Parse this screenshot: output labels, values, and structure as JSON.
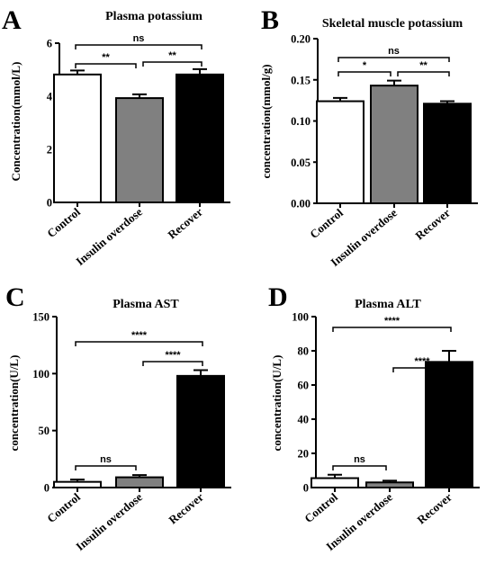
{
  "chart_data": [
    {
      "panel": "A",
      "type": "bar",
      "title": "Plasma potassium",
      "ylabel": "Concentration(mmol/L)",
      "categories": [
        "Control",
        "Insulin overdose",
        "Recover"
      ],
      "values": [
        4.82,
        3.93,
        4.82
      ],
      "errors": [
        0.15,
        0.14,
        0.2
      ],
      "fills": [
        "#ffffff",
        "#808080",
        "#000000"
      ],
      "ylim": [
        0,
        6
      ],
      "yticks": [
        0,
        2,
        4,
        6
      ],
      "yticklabels": [
        "0",
        "2",
        "4",
        "6"
      ],
      "comparisons": [
        {
          "from": 0,
          "to": 1,
          "label": "**"
        },
        {
          "from": 1,
          "to": 2,
          "label": "**"
        },
        {
          "from": 0,
          "to": 2,
          "label": "ns"
        }
      ]
    },
    {
      "panel": "B",
      "type": "bar",
      "title": "Skeletal muscle potassium",
      "ylabel": "concentration(mmol/g)",
      "categories": [
        "Control",
        "Insulin overdose",
        "Recover"
      ],
      "values": [
        0.124,
        0.143,
        0.121
      ],
      "errors": [
        0.004,
        0.006,
        0.003
      ],
      "fills": [
        "#ffffff",
        "#808080",
        "#000000"
      ],
      "ylim": [
        0,
        0.2
      ],
      "yticks": [
        0,
        0.05,
        0.1,
        0.15,
        0.2
      ],
      "yticklabels": [
        "0.00",
        "0.05",
        "0.10",
        "0.15",
        "0.20"
      ],
      "comparisons": [
        {
          "from": 0,
          "to": 1,
          "label": "*"
        },
        {
          "from": 1,
          "to": 2,
          "label": "**"
        },
        {
          "from": 0,
          "to": 2,
          "label": "ns"
        }
      ]
    },
    {
      "panel": "C",
      "type": "bar",
      "title": "Plasma AST",
      "ylabel": "concentration(U/L)",
      "categories": [
        "Control",
        "Insulin overdose",
        "Recover"
      ],
      "values": [
        5,
        9,
        98
      ],
      "errors": [
        2,
        2,
        5
      ],
      "fills": [
        "#ffffff",
        "#808080",
        "#000000"
      ],
      "ylim": [
        0,
        150
      ],
      "yticks": [
        0,
        50,
        100,
        150
      ],
      "yticklabels": [
        "0",
        "50",
        "100",
        "150"
      ],
      "comparisons": [
        {
          "from": 0,
          "to": 1,
          "label": "ns"
        },
        {
          "from": 1,
          "to": 2,
          "label": "****"
        },
        {
          "from": 0,
          "to": 2,
          "label": "****"
        }
      ]
    },
    {
      "panel": "D",
      "type": "bar",
      "title": "Plasma ALT",
      "ylabel": "concentration(U/L)",
      "categories": [
        "Control",
        "Insulin overdose",
        "Recover"
      ],
      "values": [
        5.5,
        3,
        73.5
      ],
      "errors": [
        2,
        1,
        6.5
      ],
      "fills": [
        "#ffffff",
        "#808080",
        "#000000"
      ],
      "ylim": [
        0,
        100
      ],
      "yticks": [
        0,
        20,
        40,
        60,
        80,
        100
      ],
      "yticklabels": [
        "0",
        "20",
        "40",
        "60",
        "80",
        "100"
      ],
      "comparisons": [
        {
          "from": 0,
          "to": 1,
          "label": "ns"
        },
        {
          "from": 1,
          "to": 2,
          "label": "****"
        },
        {
          "from": 0,
          "to": 2,
          "label": "****"
        }
      ]
    }
  ]
}
